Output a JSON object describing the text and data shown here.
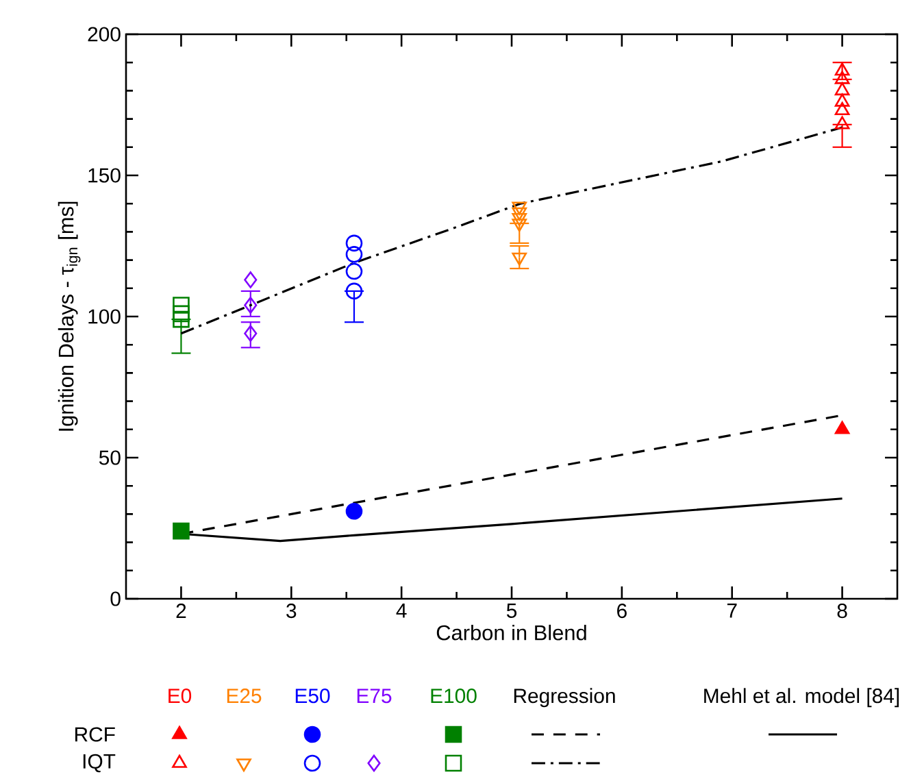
{
  "chart_data": {
    "type": "scatter",
    "xlabel": "Carbon in Blend",
    "ylabel": "Ignition Delays - τ$_{ign}$ [ms]",
    "xlim": [
      1.5,
      8.5
    ],
    "xticks": [
      2,
      3,
      4,
      5,
      6,
      7,
      8
    ],
    "ylim": [
      0,
      200
    ],
    "yticks": [
      0,
      50,
      100,
      150,
      200
    ],
    "annotations": [
      "E0",
      "E25",
      "E50",
      "E75",
      "E100",
      "Regression",
      "Mehl et al. model [84]",
      "RCF",
      "IQT"
    ],
    "series": [
      {
        "color": "#ff0000",
        "marker": "triangle",
        "x": [
          8
        ],
        "values": [
          60
        ]
      },
      {
        "color": "#0000ff",
        "marker": "circle",
        "x": [
          3.57
        ],
        "values": [
          31
        ]
      },
      {
        "color": "#008000",
        "marker": "square",
        "x": [
          2
        ],
        "values": [
          24
        ]
      },
      {
        "color": "#ff0000",
        "marker": "triangle",
        "x": [
          8,
          8,
          8,
          8,
          8,
          8
        ],
        "values": [
          187,
          184,
          180,
          176,
          173,
          168
        ],
        "errors": [
          3,
          null,
          null,
          null,
          null,
          [
            160,
            168
          ]
        ]
      },
      {
        "color": "#ff8000",
        "marker": "triangle down",
        "x": [
          5.07,
          5.07,
          5.07,
          5.07,
          5.07
        ],
        "values": [
          139,
          137,
          135,
          133,
          121
        ],
        "errors": [
          null,
          null,
          null,
          [
            126,
            133
          ],
          [
            117,
            125
          ]
        ]
      },
      {
        "color": "#0000ff",
        "marker": "circle",
        "x": [
          3.57,
          3.57,
          3.57,
          3.57
        ],
        "values": [
          126,
          122,
          116,
          109
        ],
        "errors": [
          null,
          null,
          null,
          [
            98,
            109
          ]
        ]
      },
      {
        "color": "#8000ff",
        "marker": "diamond",
        "x": [
          2.63,
          2.63,
          2.63
        ],
        "values": [
          113,
          104,
          94
        ],
        "errors": [
          null,
          [
            100,
            109
          ],
          [
            89,
            98
          ]
        ]
      },
      {
        "color": "#008000",
        "marker": "square",
        "x": [
          2,
          2,
          2
        ],
        "values": [
          104,
          101,
          99
        ],
        "errors": [
          null,
          null,
          [
            87,
            99
          ]
        ]
      },
      {
        "type": "line",
        "color": "#000000",
        "line_style": "dashed",
        "marker": "none",
        "x": [
          2,
          8
        ],
        "values": [
          23,
          65
        ]
      },
      {
        "type": "line",
        "color": "#000000",
        "line_style": "dashdot",
        "marker": "none",
        "x": [
          2,
          2.63,
          3.57,
          4.45,
          5.08,
          6.91,
          8
        ],
        "values": [
          94,
          104,
          119,
          131,
          140,
          155,
          167
        ]
      },
      {
        "type": "line",
        "color": "#000000",
        "line_style": "solid",
        "marker": "none",
        "x": [
          2,
          2.9,
          3.57,
          5,
          8
        ],
        "values": [
          23,
          20.5,
          22.5,
          26.5,
          35.5
        ]
      }
    ]
  }
}
